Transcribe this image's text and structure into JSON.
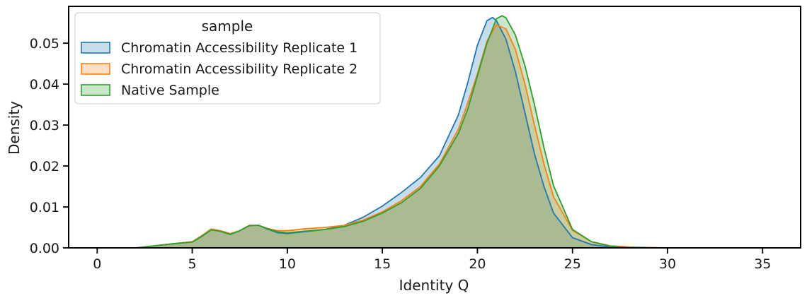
{
  "chart_data": {
    "type": "area",
    "title": "",
    "xlabel": "Identity Q",
    "ylabel": "Density",
    "xlim": [
      -1.5,
      37
    ],
    "ylim": [
      0,
      0.059
    ],
    "xticks": [
      0,
      5,
      10,
      15,
      20,
      25,
      30,
      35
    ],
    "yticks": [
      0.0,
      0.01,
      0.02,
      0.03,
      0.04,
      0.05
    ],
    "ytick_labels": [
      "0.00",
      "0.01",
      "0.02",
      "0.03",
      "0.04",
      "0.05"
    ],
    "grid": false,
    "legend": {
      "title": "sample",
      "placement": "top-left"
    },
    "series": [
      {
        "name": "Chromatin Accessibility Replicate 1",
        "color": "#1f77b4",
        "x": [
          2,
          3,
          4,
          5,
          5.5,
          6,
          6.5,
          7,
          7.5,
          8,
          8.5,
          9,
          9.5,
          10,
          11,
          12,
          13,
          14,
          15,
          16,
          17,
          18,
          19,
          19.5,
          20,
          20.5,
          20.8,
          21,
          21.5,
          22,
          22.5,
          23,
          23.5,
          24,
          25,
          26,
          27,
          28,
          29,
          30
        ],
        "y": [
          0,
          0.0005,
          0.001,
          0.0015,
          0.0028,
          0.0045,
          0.004,
          0.0033,
          0.0042,
          0.0055,
          0.0055,
          0.0045,
          0.0037,
          0.0035,
          0.004,
          0.0045,
          0.0055,
          0.0075,
          0.0102,
          0.0135,
          0.0172,
          0.0225,
          0.0325,
          0.0405,
          0.0495,
          0.0555,
          0.0563,
          0.0555,
          0.051,
          0.043,
          0.033,
          0.023,
          0.015,
          0.0085,
          0.0025,
          0.0008,
          0.0002,
          0.0001,
          0,
          0
        ]
      },
      {
        "name": "Chromatin Accessibility Replicate 2",
        "color": "#ff7f0e",
        "x": [
          2,
          3,
          4,
          5,
          5.5,
          6,
          6.5,
          7,
          7.5,
          8,
          8.5,
          9,
          9.5,
          10,
          11,
          12,
          13,
          14,
          15,
          16,
          17,
          18,
          19,
          19.5,
          20,
          20.5,
          21,
          21.5,
          22,
          22.5,
          23,
          23.5,
          24,
          25,
          26,
          27,
          28,
          29,
          30
        ],
        "y": [
          0,
          0.0005,
          0.001,
          0.0015,
          0.003,
          0.0046,
          0.0042,
          0.0035,
          0.0042,
          0.0055,
          0.0055,
          0.0047,
          0.0042,
          0.0042,
          0.0047,
          0.005,
          0.0055,
          0.0068,
          0.0088,
          0.0115,
          0.015,
          0.0205,
          0.029,
          0.0355,
          0.0425,
          0.0505,
          0.0545,
          0.0535,
          0.0485,
          0.04,
          0.03,
          0.0205,
          0.0125,
          0.0043,
          0.0015,
          0.0005,
          0.0002,
          0.0001,
          0
        ]
      },
      {
        "name": "Native Sample",
        "color": "#2ca02c",
        "x": [
          2,
          3,
          4,
          5,
          5.5,
          6,
          6.5,
          7,
          7.5,
          8,
          8.5,
          9,
          9.5,
          10,
          11,
          12,
          13,
          14,
          15,
          16,
          17,
          18,
          19,
          19.5,
          20,
          20.5,
          21,
          21.3,
          21.5,
          22,
          22.5,
          23,
          23.5,
          24,
          25,
          26,
          27,
          28,
          29,
          30
        ],
        "y": [
          0,
          0.0005,
          0.001,
          0.0014,
          0.0028,
          0.0044,
          0.004,
          0.0033,
          0.0042,
          0.0054,
          0.0055,
          0.0046,
          0.0039,
          0.0037,
          0.0041,
          0.0045,
          0.0052,
          0.0065,
          0.0085,
          0.011,
          0.0145,
          0.02,
          0.028,
          0.034,
          0.042,
          0.05,
          0.056,
          0.0567,
          0.0562,
          0.052,
          0.0445,
          0.035,
          0.0245,
          0.0152,
          0.0045,
          0.0015,
          0.0004,
          0.0001,
          0,
          0
        ]
      }
    ]
  }
}
